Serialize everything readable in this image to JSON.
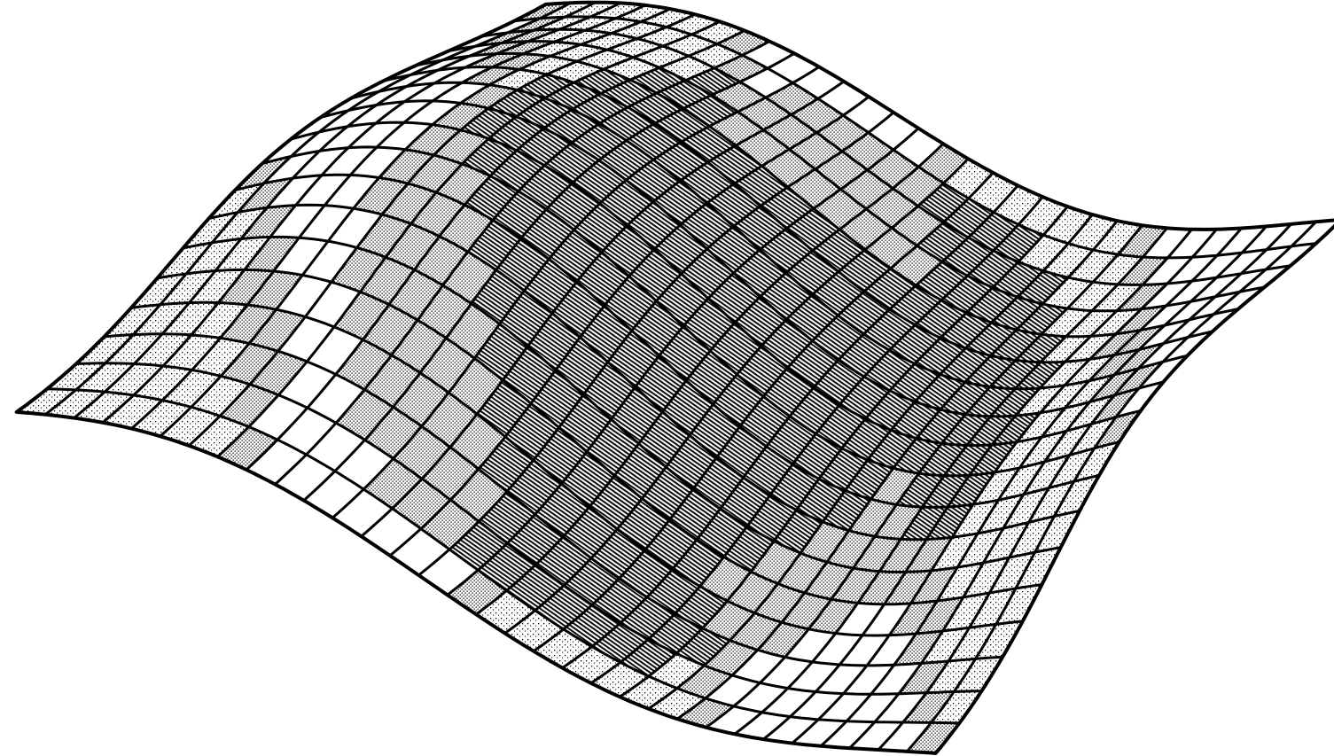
{
  "figure": {
    "kind": "wireframe-surface",
    "grid": {
      "u_lines": 32,
      "v_lines": 18
    },
    "colors": {
      "ink": "#000000",
      "paper": "#ffffff",
      "shade_light": "#bdbdbd",
      "shade_dark": "#2a2a2a"
    }
  }
}
